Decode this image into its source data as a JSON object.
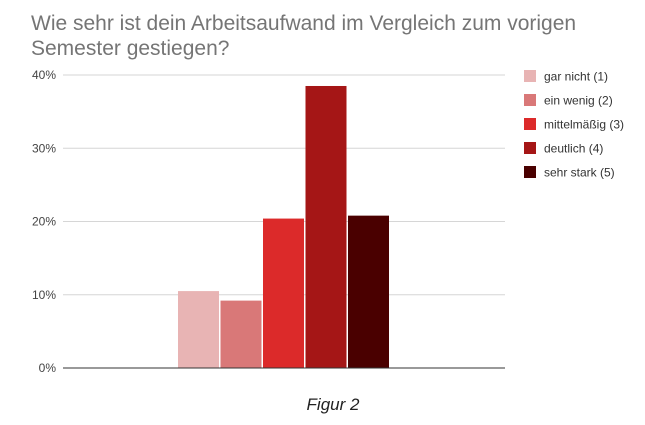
{
  "chart_data": {
    "type": "bar",
    "title_lines": [
      "Wie sehr ist dein Arbeitsaufwand im Vergleich zum vorigen",
      "Semester gestiegen?"
    ],
    "xlabel": "",
    "ylabel": "",
    "ylim": [
      0,
      40
    ],
    "y_ticks": [
      0,
      10,
      20,
      30,
      40
    ],
    "y_tick_labels": [
      "0%",
      "10%",
      "20%",
      "30%",
      "40%"
    ],
    "grid": true,
    "legend_position": "right",
    "series": [
      {
        "name": "gar nicht (1)",
        "value": 10.5,
        "color": "#e8b4b4"
      },
      {
        "name": "ein wenig (2)",
        "value": 9.2,
        "color": "#d97878"
      },
      {
        "name": "mittelmäßig (3)",
        "value": 20.4,
        "color": "#dc2a2a"
      },
      {
        "name": "deutlich (4)",
        "value": 38.5,
        "color": "#a51616"
      },
      {
        "name": "sehr stark (5)",
        "value": 20.8,
        "color": "#4a0000"
      }
    ],
    "caption": "Figur 2"
  }
}
